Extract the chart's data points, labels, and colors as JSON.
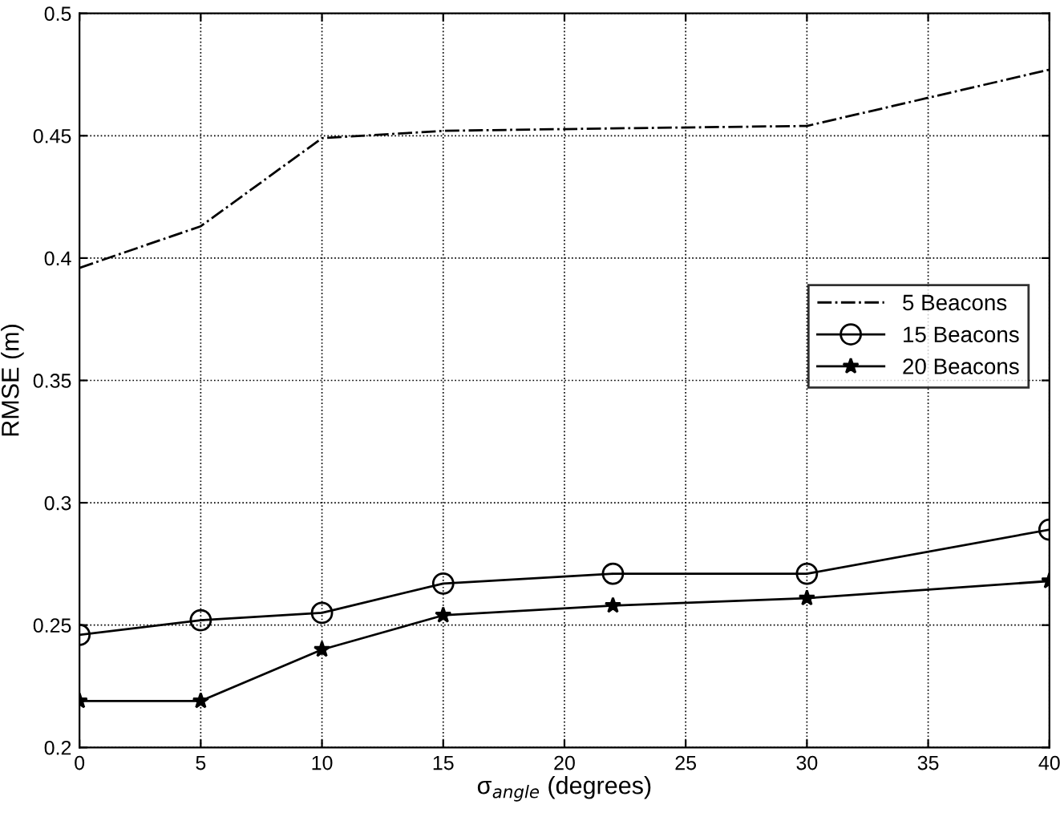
{
  "chart_data": {
    "type": "line",
    "xlabel": "σ$_{angle}$ (degrees)",
    "ylabel": "RMSE (m)",
    "xlim": [
      0,
      40
    ],
    "ylim": [
      0.2,
      0.5
    ],
    "xticks": [
      0,
      5,
      10,
      15,
      20,
      25,
      30,
      35,
      40
    ],
    "yticks": [
      0.2,
      0.25,
      0.3,
      0.35,
      0.4,
      0.45,
      0.5
    ],
    "grid": true,
    "legend": "right",
    "x": [
      0,
      5,
      10,
      15,
      22,
      30,
      40
    ],
    "series": [
      {
        "name": "5 Beacons",
        "color": "#000000",
        "line_style": "dashdot",
        "marker": "none",
        "values": [
          0.396,
          0.413,
          0.449,
          0.452,
          0.453,
          0.454,
          0.477
        ]
      },
      {
        "name": "15 Beacons",
        "color": "#000000",
        "line_style": "solid",
        "marker": "circle",
        "values": [
          0.246,
          0.252,
          0.255,
          0.267,
          0.271,
          0.271,
          0.289
        ]
      },
      {
        "name": "20 Beacons",
        "color": "#000000",
        "line_style": "solid",
        "marker": "star",
        "values": [
          0.219,
          0.219,
          0.24,
          0.254,
          0.258,
          0.261,
          0.268
        ]
      }
    ]
  }
}
